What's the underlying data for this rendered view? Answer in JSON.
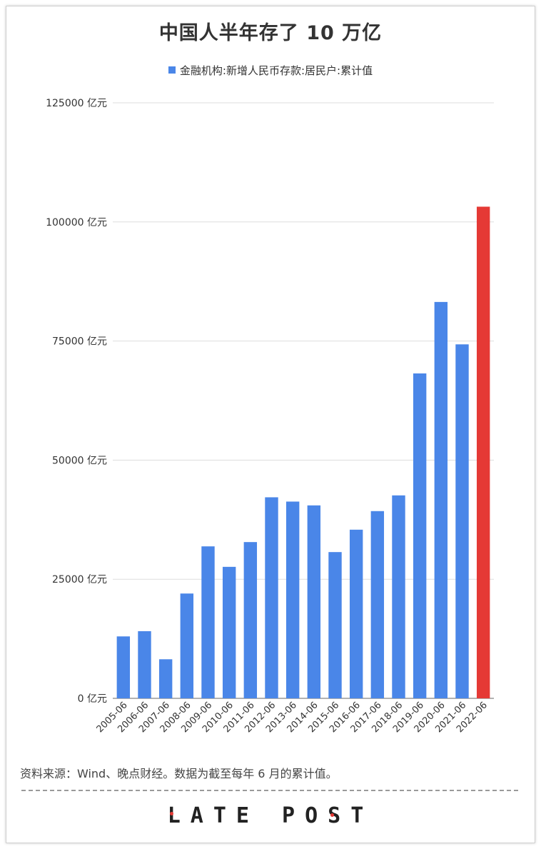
{
  "chart_data": {
    "type": "bar",
    "title": "中国人半年存了 10 万亿",
    "legend": "金融机构:新增人民币存款:居民户:累计值",
    "categories": [
      "2005-06",
      "2006-06",
      "2007-06",
      "2008-06",
      "2009-06",
      "2010-06",
      "2011-06",
      "2012-06",
      "2013-06",
      "2014-06",
      "2015-06",
      "2016-06",
      "2017-06",
      "2018-06",
      "2019-06",
      "2020-06",
      "2021-06",
      "2022-06"
    ],
    "values": [
      13000,
      14100,
      8200,
      22000,
      31900,
      27600,
      32800,
      42200,
      41300,
      40500,
      30700,
      35400,
      39300,
      42600,
      68200,
      83200,
      74300,
      103200
    ],
    "ylim": [
      0,
      125000
    ],
    "yticks": [
      0,
      25000,
      50000,
      75000,
      100000,
      125000
    ],
    "ytick_labels": [
      "0 亿元",
      "25000 亿元",
      "50000 亿元",
      "75000 亿元",
      "100000 亿元",
      "125000 亿元"
    ],
    "grid": true,
    "legend_position": "top",
    "colors": {
      "bar": "#4a86e8",
      "highlight": "#e53935",
      "grid": "#dddddd",
      "axis": "#999999"
    },
    "highlight_category": "2022-06"
  },
  "footer": {
    "source": "资料来源：Wind、晚点财经。数据为截至每年 6 月的累计值。",
    "logo": "LATE POST"
  }
}
